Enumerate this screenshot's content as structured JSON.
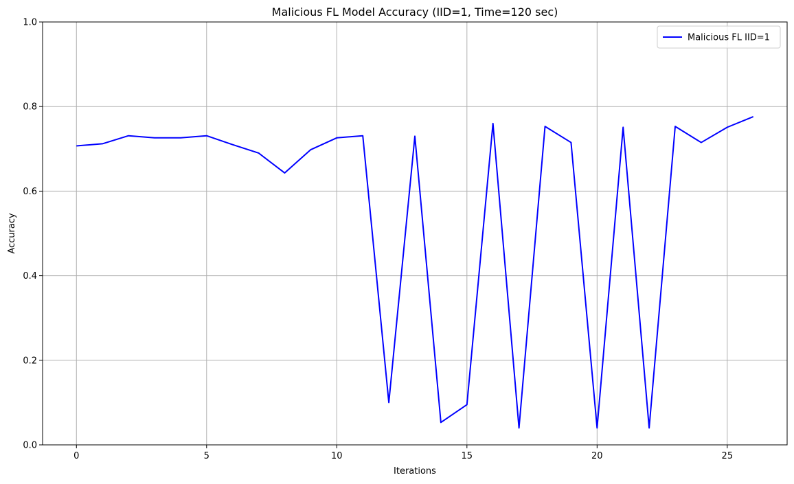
{
  "chart_data": {
    "type": "line",
    "title": "Malicious FL Model Accuracy (IID=1, Time=120 sec)",
    "xlabel": "Iterations",
    "ylabel": "Accuracy",
    "xlim": [
      -1.3,
      27.3
    ],
    "ylim": [
      0,
      1
    ],
    "xticks": [
      0,
      5,
      10,
      15,
      20,
      25
    ],
    "yticks": [
      0.0,
      0.2,
      0.4,
      0.6,
      0.8,
      1.0
    ],
    "xtick_labels": [
      "0",
      "5",
      "10",
      "15",
      "20",
      "25"
    ],
    "ytick_labels": [
      "0.0",
      "0.2",
      "0.4",
      "0.6",
      "0.8",
      "1.0"
    ],
    "grid": true,
    "legend_position": "top-right",
    "series": [
      {
        "name": "Malicious FL IID=1",
        "color": "#0000ff",
        "x": [
          0,
          1,
          2,
          3,
          4,
          5,
          6,
          7,
          8,
          9,
          10,
          11,
          12,
          13,
          14,
          15,
          16,
          17,
          18,
          19,
          20,
          21,
          22,
          23,
          24,
          25,
          26
        ],
        "values": [
          0.707,
          0.712,
          0.731,
          0.726,
          0.726,
          0.731,
          0.71,
          0.69,
          0.643,
          0.698,
          0.726,
          0.731,
          0.1,
          0.73,
          0.053,
          0.095,
          0.76,
          0.04,
          0.753,
          0.715,
          0.04,
          0.751,
          0.04,
          0.753,
          0.715,
          0.751,
          0.776
        ]
      }
    ]
  }
}
